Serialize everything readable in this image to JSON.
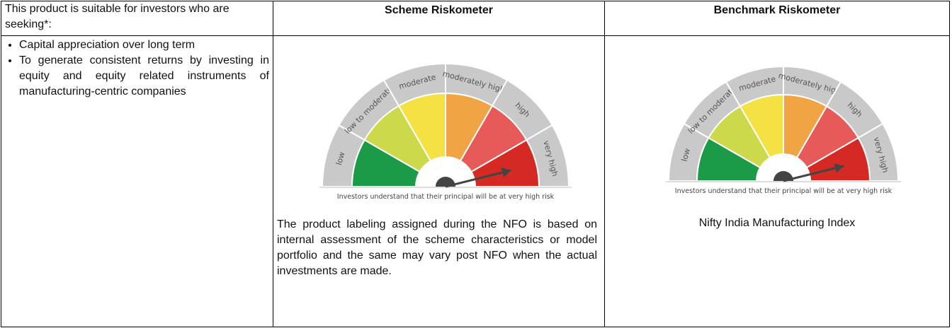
{
  "table": {
    "headers": [
      "This product is suitable for investors who are seeking*:",
      "Scheme Riskometer",
      "Benchmark Riskometer"
    ],
    "objectives": [
      "Capital appreciation over long term",
      "To generate consistent returns by investing in equity and equity related instruments of manufacturing-centric companies"
    ],
    "scheme_riskometer": {
      "levels": [
        "low",
        "low to moderate",
        "moderate",
        "moderately high",
        "high",
        "very high"
      ],
      "caption": "Investors understand that their principal will be at very high risk"
    },
    "scheme_note": "The product labeling assigned during the NFO is based on internal assessment of the scheme characteristics or model portfolio and the same may vary post NFO when the actual investments are made.",
    "benchmark_riskometer": {
      "levels": [
        "low",
        "low to moderate",
        "moderate",
        "moderately high",
        "high",
        "very high"
      ],
      "caption": "Investors understand that their principal will be at very high risk"
    },
    "benchmark_name": "Nifty India Manufacturing Index"
  }
}
